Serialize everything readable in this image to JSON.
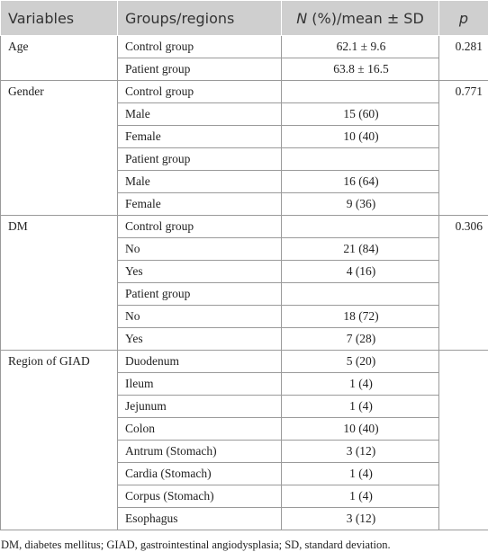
{
  "table": {
    "header": [
      "Variables",
      "Groups/regions",
      "N (%)/mean ± SD",
      "p"
    ],
    "groups": [
      {
        "variable": "Age",
        "p": "0.281",
        "rows": [
          [
            "Control group",
            "62.1 ± 9.6"
          ],
          [
            "Patient group",
            "63.8 ± 16.5"
          ]
        ]
      },
      {
        "variable": "Gender",
        "p": "0.771",
        "rows": [
          [
            "Control group",
            null
          ],
          [
            "Male",
            "15 (60)"
          ],
          [
            "Female",
            "10 (40)"
          ],
          [
            "Patient group",
            null
          ],
          [
            "Male",
            "16 (64)"
          ],
          [
            "Female",
            "9 (36)"
          ]
        ]
      },
      {
        "variable": "DM",
        "p": "0.306",
        "rows": [
          [
            "Control group",
            null
          ],
          [
            "No",
            "21 (84)"
          ],
          [
            "Yes",
            "4 (16)"
          ],
          [
            "Patient group",
            null
          ],
          [
            "No",
            "18 (72)"
          ],
          [
            "Yes",
            "7 (28)"
          ]
        ]
      },
      {
        "variable": "Region of GIAD",
        "p": null,
        "rows": [
          [
            "Duodenum",
            "5 (20)"
          ],
          [
            "Ileum",
            "1 (4)"
          ],
          [
            "Jejunum",
            "1 (4)"
          ],
          [
            "Colon",
            "10 (40)"
          ],
          [
            "Antrum (Stomach)",
            "3 (12)"
          ],
          [
            "Cardia (Stomach)",
            "1 (4)"
          ],
          [
            "Corpus (Stomach)",
            "1 (4)"
          ],
          [
            "Esophagus",
            "3 (12)"
          ]
        ]
      }
    ]
  },
  "footnote": "DM, diabetes mellitus; GIAD, gastrointestinal angiodysplasia; SD, standard deviation."
}
